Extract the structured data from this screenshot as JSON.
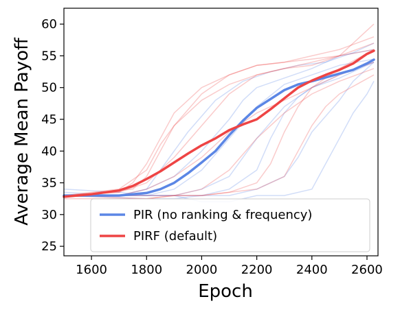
{
  "chart_data": {
    "type": "line",
    "xlabel": "Epoch",
    "ylabel": "Average Mean Payoff",
    "xlim": [
      1500,
      2640
    ],
    "ylim": [
      23.5,
      62.5
    ],
    "xticks": [
      1600,
      1800,
      2000,
      2200,
      2400,
      2600
    ],
    "yticks": [
      25,
      30,
      35,
      40,
      45,
      50,
      55,
      60
    ],
    "grid": false,
    "legend_position": "lower-right",
    "series": [
      {
        "name": "PIR (no ranking & frequency)",
        "color": "#5b86e5",
        "x": [
          1500,
          1600,
          1700,
          1800,
          1850,
          1900,
          1950,
          2000,
          2050,
          2100,
          2150,
          2200,
          2250,
          2300,
          2350,
          2400,
          2450,
          2500,
          2550,
          2600,
          2625
        ],
        "y": [
          33.0,
          33.0,
          33.0,
          33.4,
          34.0,
          35.0,
          36.5,
          38.2,
          40.0,
          42.5,
          44.8,
          46.8,
          48.2,
          49.6,
          50.5,
          51.0,
          51.6,
          52.2,
          52.8,
          53.8,
          54.4
        ]
      },
      {
        "name": "PIRF (default)",
        "color": "#ee4444",
        "x": [
          1500,
          1600,
          1700,
          1750,
          1800,
          1850,
          1900,
          1950,
          2000,
          2050,
          2100,
          2150,
          2200,
          2250,
          2300,
          2350,
          2400,
          2450,
          2500,
          2550,
          2600,
          2625
        ],
        "y": [
          32.8,
          33.2,
          33.8,
          34.5,
          35.6,
          36.8,
          38.2,
          39.6,
          40.9,
          42.0,
          43.3,
          44.2,
          45.0,
          46.6,
          48.3,
          50.0,
          51.1,
          52.0,
          52.8,
          53.8,
          55.3,
          55.8
        ]
      }
    ],
    "background_runs": {
      "blue": [
        {
          "x": [
            1500,
            1700,
            1800,
            1900,
            2000,
            2100,
            2200,
            2300,
            2400,
            2500,
            2625
          ],
          "y": [
            33.5,
            33,
            33,
            34,
            37,
            42,
            47,
            50.5,
            52,
            53.5,
            54.5
          ]
        },
        {
          "x": [
            1500,
            1700,
            1800,
            1850,
            1950,
            2050,
            2150,
            2250,
            2350,
            2450,
            2550,
            2625
          ],
          "y": [
            33,
            33,
            34,
            37,
            43,
            48,
            51,
            52.5,
            53.5,
            54,
            55.5,
            57
          ]
        },
        {
          "x": [
            1500,
            1700,
            1800,
            1900,
            2000,
            2100,
            2200,
            2300,
            2400,
            2500,
            2625
          ],
          "y": [
            34,
            33.5,
            33,
            33,
            34,
            36,
            42,
            47,
            50,
            51.5,
            54
          ]
        },
        {
          "x": [
            1500,
            1800,
            1900,
            2000,
            2100,
            2200,
            2300,
            2350,
            2400,
            2500,
            2550,
            2625
          ],
          "y": [
            33,
            32.5,
            32.5,
            33,
            33,
            34,
            36,
            39,
            43,
            48,
            51,
            54
          ]
        },
        {
          "x": [
            1500,
            1800,
            1900,
            2000,
            2100,
            2200,
            2250,
            2300,
            2350,
            2400,
            2500,
            2625
          ],
          "y": [
            33,
            33,
            33,
            33,
            34,
            37,
            42,
            46,
            48.5,
            50,
            52,
            54
          ]
        },
        {
          "x": [
            1500,
            1800,
            1900,
            2000,
            2100,
            2200,
            2300,
            2400,
            2450,
            2500,
            2550,
            2600,
            2625
          ],
          "y": [
            33,
            33,
            33,
            32,
            32,
            33,
            33,
            34,
            38,
            42,
            46,
            49,
            51
          ]
        },
        {
          "x": [
            1500,
            1700,
            1800,
            1900,
            2000,
            2100,
            2150,
            2200,
            2300,
            2400,
            2500,
            2625
          ],
          "y": [
            33,
            33,
            34,
            36,
            40,
            45,
            48,
            50,
            51.5,
            53,
            55,
            56
          ]
        }
      ],
      "red": [
        {
          "x": [
            1500,
            1700,
            1750,
            1800,
            1850,
            1900,
            2000,
            2100,
            2200,
            2300,
            2400,
            2500,
            2625
          ],
          "y": [
            33,
            33.5,
            35,
            38,
            42,
            46,
            50,
            52,
            53.5,
            54,
            54.5,
            55,
            56
          ]
        },
        {
          "x": [
            1500,
            1700,
            1800,
            1850,
            1900,
            2000,
            2100,
            2200,
            2300,
            2400,
            2500,
            2625
          ],
          "y": [
            33,
            34,
            37,
            41,
            44,
            49,
            52,
            53.5,
            54,
            55,
            56,
            58
          ]
        },
        {
          "x": [
            1500,
            1700,
            1800,
            1900,
            2000,
            2100,
            2200,
            2300,
            2400,
            2500,
            2625
          ],
          "y": [
            33,
            33.5,
            35,
            39,
            44,
            49,
            52,
            53,
            53.5,
            55,
            57
          ]
        },
        {
          "x": [
            1500,
            1800,
            1900,
            2000,
            2100,
            2200,
            2250,
            2300,
            2350,
            2400,
            2500,
            2625
          ],
          "y": [
            33,
            33,
            33,
            33,
            33.5,
            35,
            38,
            43,
            47,
            50,
            53,
            56
          ]
        },
        {
          "x": [
            1500,
            1700,
            1800,
            1900,
            2000,
            2100,
            2200,
            2300,
            2400,
            2500,
            2625
          ],
          "y": [
            33,
            33,
            34,
            36,
            39,
            43,
            46,
            48,
            50,
            52,
            54
          ]
        },
        {
          "x": [
            1500,
            1800,
            1900,
            2000,
            2100,
            2200,
            2300,
            2350,
            2400,
            2450,
            2500,
            2625
          ],
          "y": [
            32.5,
            32.5,
            33,
            33,
            33.5,
            34,
            36,
            40,
            44,
            47,
            49,
            52
          ]
        },
        {
          "x": [
            1500,
            1750,
            1800,
            1850,
            1900,
            2000,
            2100,
            2200,
            2300,
            2400,
            2500,
            2625
          ],
          "y": [
            33,
            34,
            36,
            40,
            44,
            48,
            50.5,
            52,
            53,
            54,
            55,
            60
          ]
        },
        {
          "x": [
            1500,
            1800,
            1900,
            2000,
            2100,
            2200,
            2300,
            2400,
            2500,
            2625
          ],
          "y": [
            33,
            32.5,
            33,
            34,
            37,
            42,
            46,
            49,
            51,
            53
          ]
        }
      ]
    }
  }
}
